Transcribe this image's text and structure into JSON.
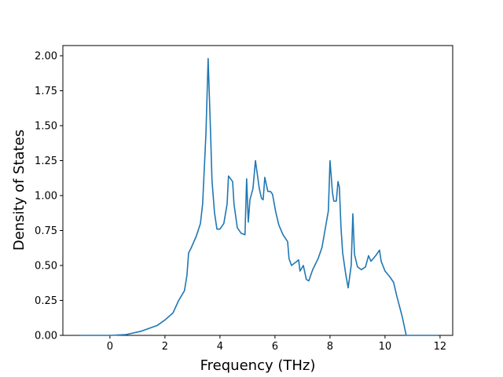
{
  "chart_data": {
    "type": "line",
    "xlabel": "Frequency (THz)",
    "ylabel": "Density of States",
    "x": [
      -1.11,
      0,
      0.57,
      1.14,
      1.71,
      2.0,
      2.29,
      2.5,
      2.71,
      2.8,
      2.86,
      2.94,
      3.14,
      3.29,
      3.37,
      3.49,
      3.57,
      3.66,
      3.71,
      3.8,
      3.89,
      4.0,
      4.14,
      4.26,
      4.31,
      4.46,
      4.51,
      4.63,
      4.77,
      4.91,
      4.97,
      5.03,
      5.09,
      5.2,
      5.29,
      5.43,
      5.51,
      5.57,
      5.63,
      5.74,
      5.83,
      5.91,
      6.03,
      6.14,
      6.29,
      6.46,
      6.51,
      6.6,
      6.8,
      6.86,
      6.91,
      7.03,
      7.14,
      7.23,
      7.37,
      7.57,
      7.71,
      7.86,
      7.94,
      8.0,
      8.09,
      8.14,
      8.23,
      8.29,
      8.34,
      8.4,
      8.46,
      8.57,
      8.66,
      8.77,
      8.83,
      8.89,
      9.0,
      9.14,
      9.29,
      9.4,
      9.49,
      9.66,
      9.8,
      9.86,
      10.0,
      10.17,
      10.31,
      10.43,
      10.63,
      10.77,
      11.89
    ],
    "series": [
      {
        "color": "#1f77b4",
        "values": [
          0,
          0,
          0.005,
          0.03,
          0.07,
          0.11,
          0.16,
          0.25,
          0.32,
          0.43,
          0.59,
          0.62,
          0.71,
          0.8,
          0.94,
          1.44,
          1.98,
          1.44,
          1.11,
          0.88,
          0.76,
          0.76,
          0.8,
          0.94,
          1.14,
          1.1,
          0.94,
          0.77,
          0.73,
          0.72,
          1.12,
          0.81,
          0.97,
          1.05,
          1.25,
          1.05,
          0.98,
          0.97,
          1.13,
          1.03,
          1.03,
          1.01,
          0.88,
          0.79,
          0.72,
          0.67,
          0.55,
          0.5,
          0.53,
          0.54,
          0.46,
          0.5,
          0.4,
          0.39,
          0.47,
          0.55,
          0.63,
          0.8,
          0.89,
          1.25,
          1.02,
          0.96,
          0.96,
          1.1,
          1.06,
          0.77,
          0.59,
          0.44,
          0.34,
          0.5,
          0.87,
          0.58,
          0.49,
          0.47,
          0.49,
          0.57,
          0.53,
          0.57,
          0.61,
          0.53,
          0.46,
          0.42,
          0.38,
          0.28,
          0.13,
          0,
          0
        ]
      }
    ],
    "xlim": [
      -1.71,
      12.46
    ],
    "ylim": [
      0,
      2.073
    ],
    "xticks": [
      0,
      2,
      4,
      6,
      8,
      10,
      12
    ],
    "yticks": [
      {
        "value": 0,
        "label": "0.00"
      },
      {
        "value": 0.25,
        "label": "0.25"
      },
      {
        "value": 0.5,
        "label": "0.50"
      },
      {
        "value": 0.75,
        "label": "0.75"
      },
      {
        "value": 1,
        "label": "1.00"
      },
      {
        "value": 1.25,
        "label": "1.25"
      },
      {
        "value": 1.5,
        "label": "1.50"
      },
      {
        "value": 1.75,
        "label": "1.75"
      },
      {
        "value": 2,
        "label": "2.00"
      }
    ]
  }
}
